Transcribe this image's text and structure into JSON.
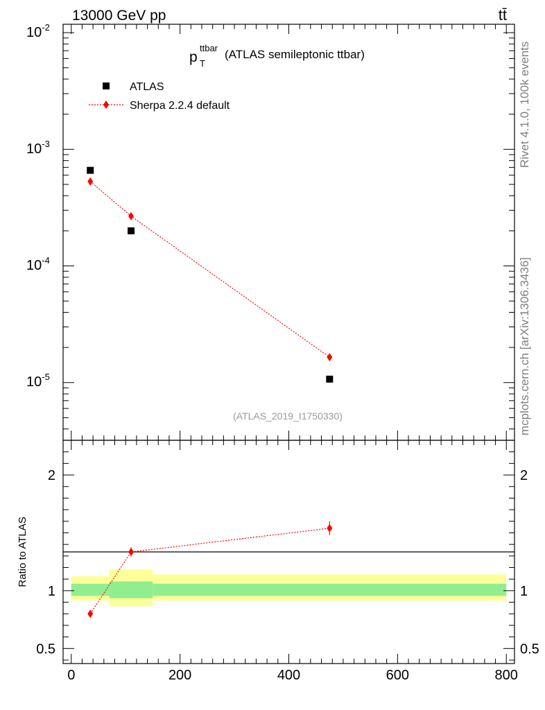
{
  "header": {
    "energy_label": "13000 GeV pp",
    "process_label": "tt̄"
  },
  "side_text": {
    "rivet": "Rivet 4.1.0,  100k events",
    "source": "mcplots.cern.ch [arXiv:1306.3436]"
  },
  "chart_data": [
    {
      "type": "scatter",
      "panel": "main",
      "title_main": "p",
      "title_sub": "T",
      "title_sup": "ttbar",
      "title_rest": "(ATLAS semileptonic ttbar)",
      "analysis_id": "(ATLAS_2019_I1750330)",
      "yscale": "log",
      "ylim": [
        3.2e-06,
        0.0118
      ],
      "xlim": [
        -15,
        815
      ],
      "ytick_labels": [
        {
          "mant": "10",
          "exp": "-2",
          "value": 0.01
        },
        {
          "mant": "10",
          "exp": "-3",
          "value": 0.001
        },
        {
          "mant": "10",
          "exp": "-4",
          "value": 0.0001
        },
        {
          "mant": "10",
          "exp": "-5",
          "value": 1e-05
        }
      ],
      "legend": [
        {
          "label": "ATLAS",
          "marker": "square",
          "color": "#000000"
        },
        {
          "label": "Sherpa 2.2.4 default",
          "marker": "diamond",
          "color": "#ff0000"
        }
      ],
      "series": [
        {
          "name": "ATLAS",
          "x": [
            35,
            110,
            475
          ],
          "y": [
            0.00066,
            0.0002,
            1.07e-05
          ],
          "color": "#000000"
        },
        {
          "name": "Sherpa 2.2.4 default",
          "x": [
            35,
            110,
            475
          ],
          "y": [
            0.00053,
            0.000267,
            1.65e-05
          ],
          "color": "#ff0000"
        }
      ]
    },
    {
      "type": "line",
      "panel": "ratio",
      "ylabel": "Ratio to ATLAS",
      "xlim": [
        -15,
        815
      ],
      "ylim": [
        0.37,
        2.3
      ],
      "x_ticks": [
        0,
        200,
        400,
        600,
        800
      ],
      "x_tick_labels": [
        "0",
        "200",
        "400",
        "600",
        "800"
      ],
      "y_ticks": [
        0.5,
        1,
        2
      ],
      "y_tick_labels": [
        "0.5",
        "1",
        "2"
      ],
      "bands": [
        {
          "x0": 0,
          "x1": 70,
          "inner": [
            0.955,
            1.06
          ],
          "outer": [
            0.915,
            1.125
          ]
        },
        {
          "x0": 70,
          "x1": 150,
          "inner": [
            0.935,
            1.08
          ],
          "outer": [
            0.865,
            1.185
          ]
        },
        {
          "x0": 150,
          "x1": 800,
          "inner": [
            0.955,
            1.06
          ],
          "outer": [
            0.915,
            1.14
          ]
        }
      ],
      "series": [
        {
          "name": "Sherpa 2.2.4 default",
          "x": [
            35,
            110,
            475
          ],
          "y": [
            0.8,
            1.335,
            1.54
          ],
          "yerr": [
            0.015,
            0.04,
            0.06
          ],
          "color": "#ff0000"
        }
      ],
      "band_colors": {
        "inner": "#90ee90",
        "outer": "#ffff99"
      }
    }
  ]
}
